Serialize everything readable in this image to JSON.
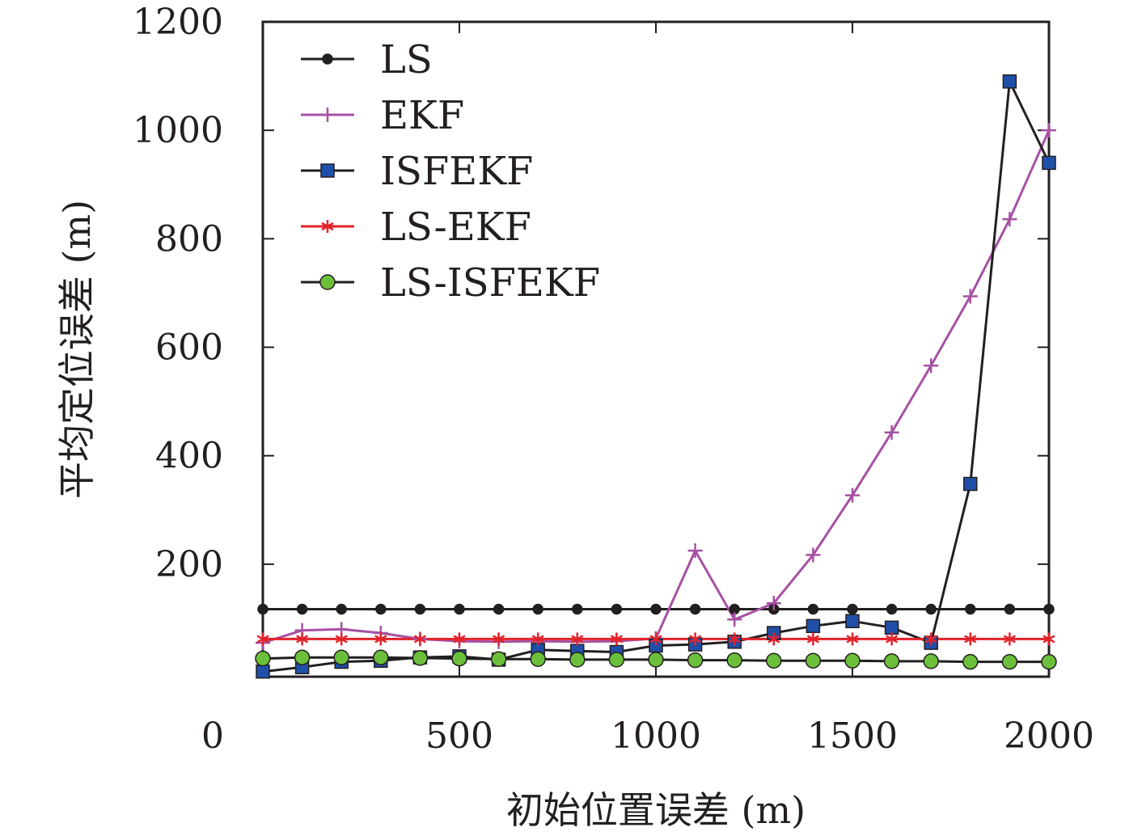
{
  "chart_data": {
    "type": "line",
    "xlabel": "初始位置误差 (m)",
    "ylabel": "平均定位误差 (m)",
    "xlim": [
      0,
      2000
    ],
    "ylim": [
      0,
      1200
    ],
    "x_ticks": [
      0,
      500,
      1000,
      1500,
      2000
    ],
    "y_ticks": [
      200,
      400,
      600,
      800,
      1000,
      1200
    ],
    "grid": false,
    "legend_position": "top-left",
    "x": [
      0,
      100,
      200,
      300,
      400,
      500,
      600,
      700,
      800,
      900,
      1000,
      1100,
      1200,
      1300,
      1400,
      1500,
      1600,
      1700,
      1800,
      1900,
      2000
    ],
    "series": [
      {
        "name": "LS",
        "color": "#231f20",
        "marker": "circle",
        "marker_fill": "#231f20",
        "values": [
          117,
          117,
          117,
          117,
          117,
          117,
          117,
          117,
          117,
          117,
          117,
          117,
          117,
          117,
          117,
          117,
          117,
          117,
          117,
          117,
          117
        ]
      },
      {
        "name": "EKF",
        "color": "#a651a4",
        "marker": "plus",
        "marker_fill": "#a651a4",
        "values": [
          55,
          78,
          80,
          73,
          62,
          58,
          57,
          58,
          57,
          58,
          63,
          225,
          98,
          128,
          217,
          327,
          443,
          566,
          694,
          836,
          1000
        ]
      },
      {
        "name": "ISFEKF",
        "color": "#231f20",
        "marker": "square",
        "marker_fill": "#1f4fa8",
        "values": [
          2,
          10,
          20,
          22,
          28,
          30,
          24,
          42,
          40,
          38,
          50,
          52,
          57,
          73,
          86,
          95,
          83,
          55,
          348,
          1090,
          940
        ]
      },
      {
        "name": "LS-EKF",
        "color": "#e3232a",
        "marker": "asterisk",
        "marker_fill": "#e3232a",
        "values": [
          62,
          62,
          62,
          62,
          62,
          62,
          62,
          62,
          62,
          62,
          62,
          62,
          62,
          62,
          62,
          62,
          62,
          62,
          62,
          62,
          62
        ]
      },
      {
        "name": "LS-ISFEKF",
        "color": "#231f20",
        "marker": "circle",
        "marker_fill": "#6bbf3a",
        "values": [
          26,
          28,
          28,
          28,
          27,
          26,
          25,
          25,
          24,
          24,
          24,
          23,
          23,
          22,
          22,
          22,
          21,
          21,
          20,
          20,
          20
        ]
      }
    ]
  }
}
